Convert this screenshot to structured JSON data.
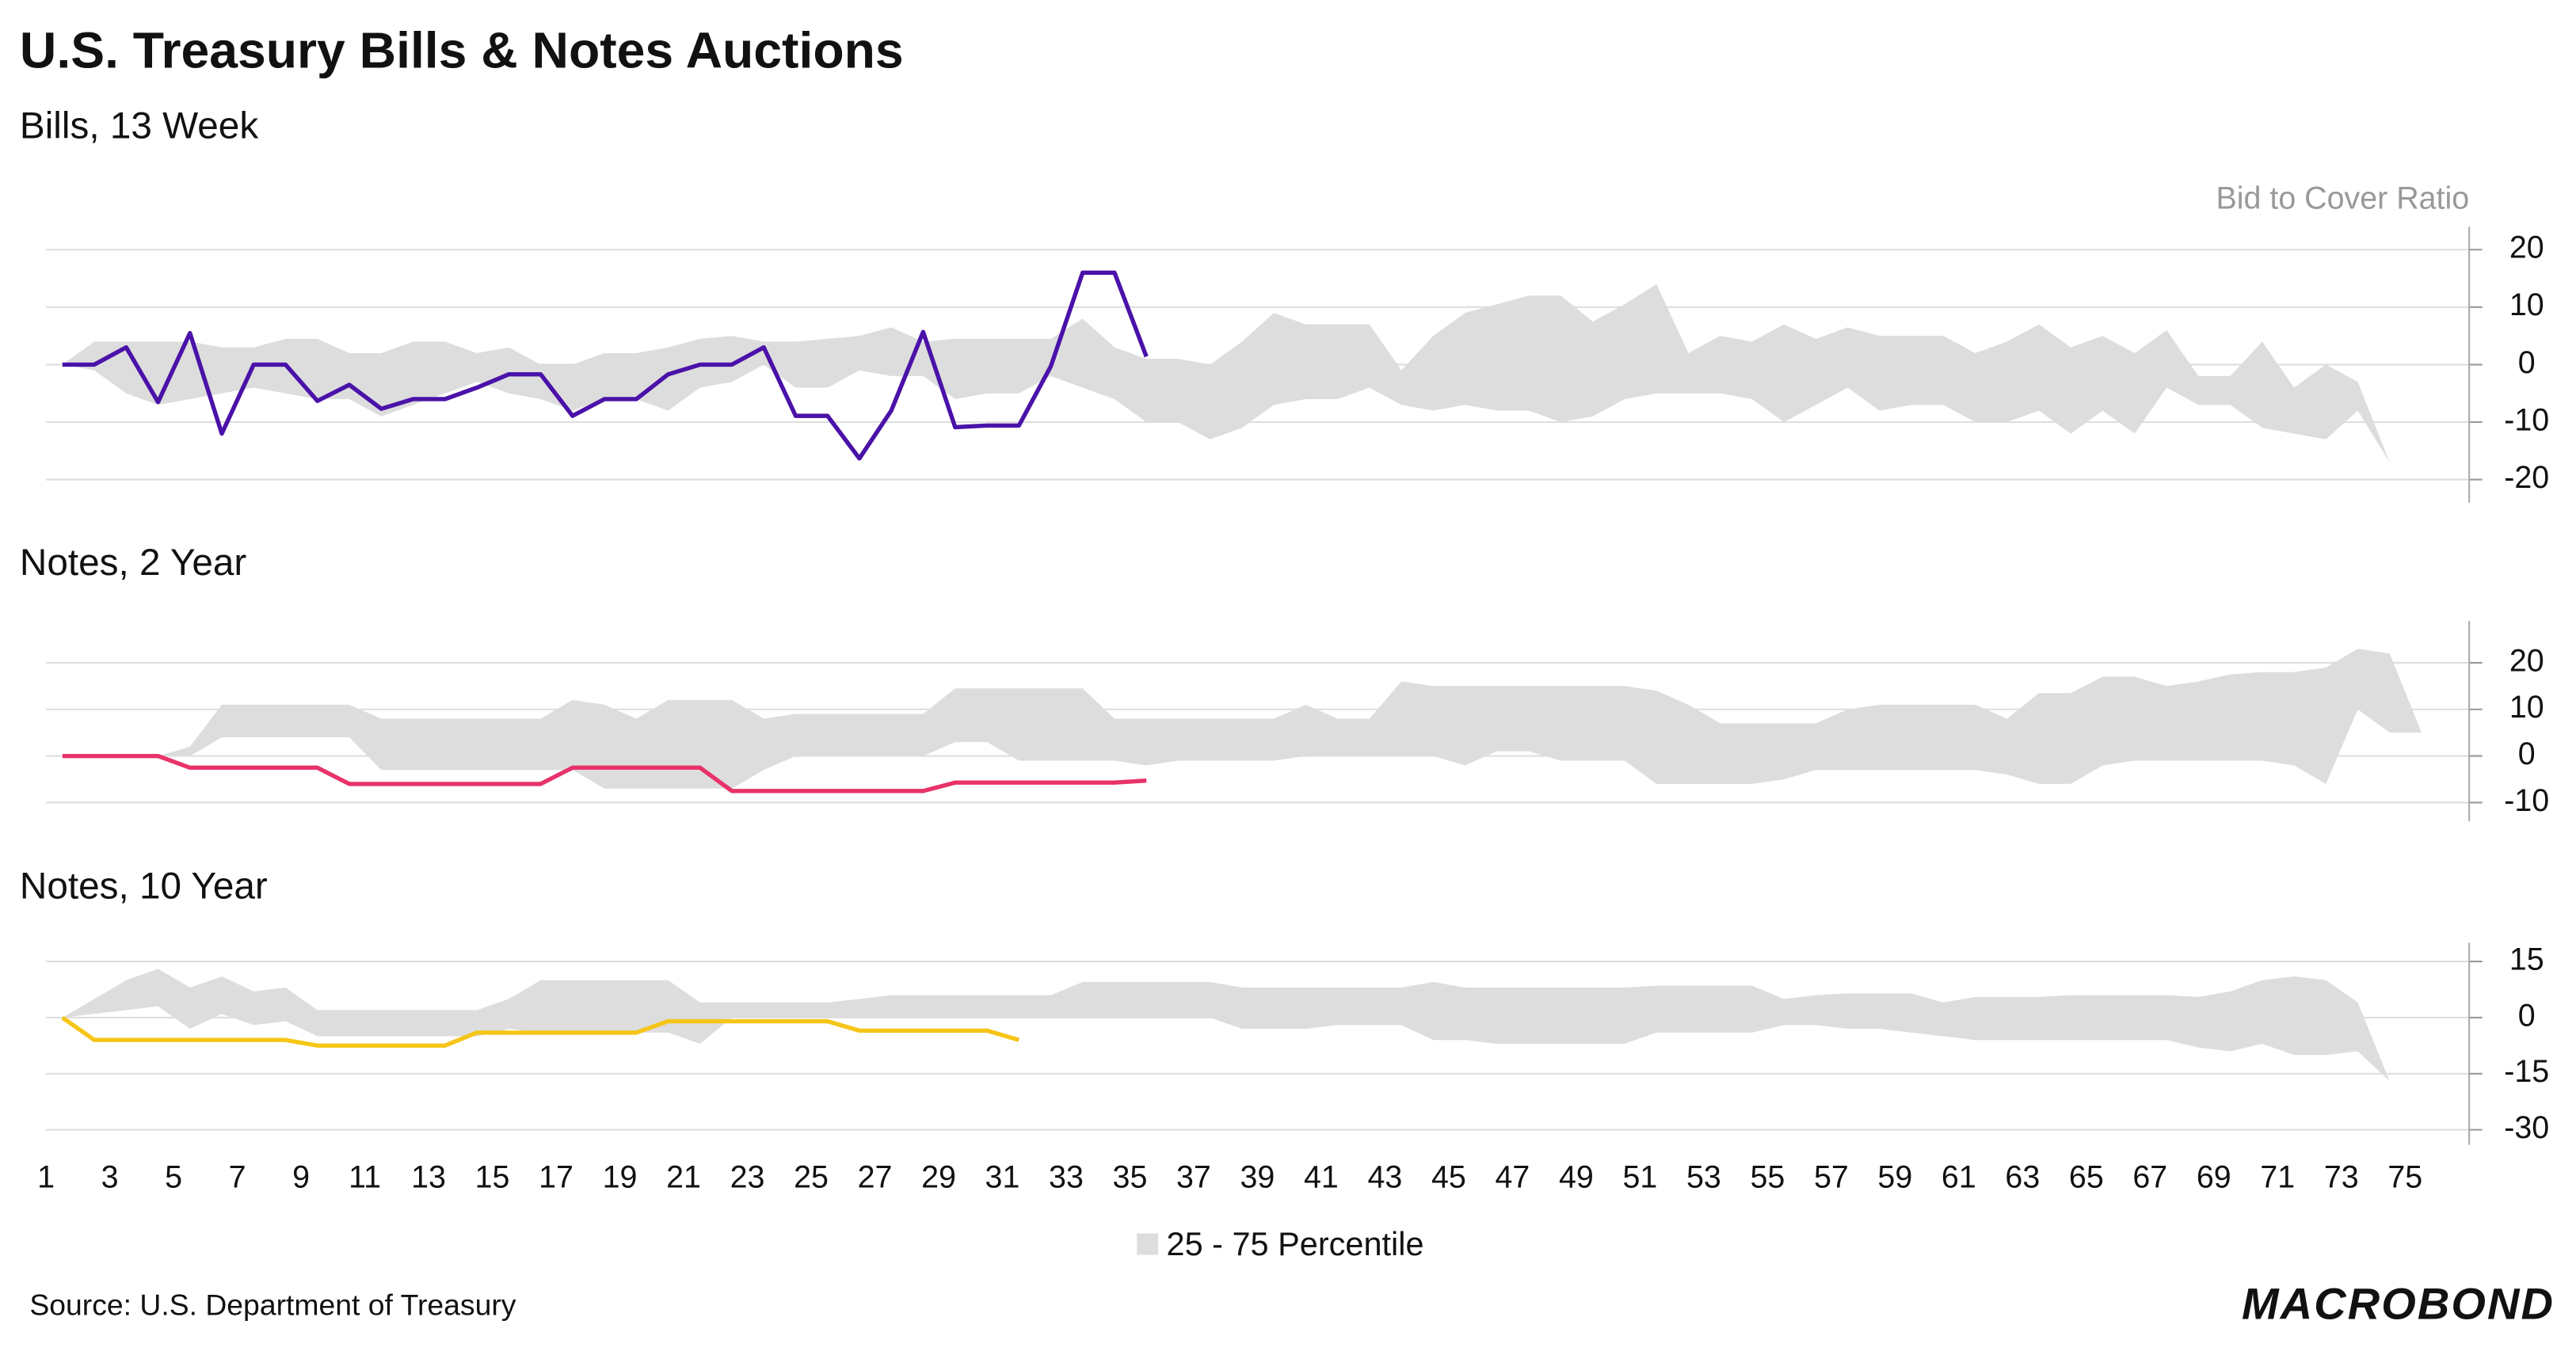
{
  "title": "U.S. Treasury Bills & Notes Auctions",
  "source": "Source: U.S. Department of Treasury",
  "logo": "MACROBOND",
  "legend": {
    "name": "25 - 75 Percentile",
    "color": "#dddddd"
  },
  "chart_data": [
    {
      "type": "line",
      "subtitle": "Bills, 13 Week",
      "y_label": "Bid to Cover Ratio",
      "x": [
        1,
        2,
        3,
        4,
        5,
        6,
        7,
        8,
        9,
        10,
        11,
        12,
        13,
        14,
        15,
        16,
        17,
        18,
        19,
        20,
        21,
        22,
        23,
        24,
        25,
        26,
        27,
        28,
        29,
        30,
        31,
        32,
        33,
        34,
        35,
        36,
        37,
        38,
        39,
        40,
        41,
        42,
        43,
        44,
        45,
        46,
        47,
        48,
        49,
        50,
        51,
        52,
        53,
        54,
        55,
        56,
        57,
        58,
        59,
        60,
        61,
        62,
        63,
        64,
        65,
        66,
        67,
        68,
        69,
        70,
        71,
        72,
        73,
        74,
        75
      ],
      "xlim": [
        1,
        75
      ],
      "ylim": [
        -24,
        24
      ],
      "yticks": [
        -20,
        -10,
        0,
        10,
        20
      ],
      "grid": true,
      "band": {
        "color": "#dddddd",
        "upper": [
          0,
          4,
          4,
          4,
          4,
          3,
          3,
          4.5,
          4.5,
          2,
          2,
          4,
          4,
          2,
          3,
          0,
          0,
          2,
          2,
          3,
          4.5,
          5,
          4,
          4,
          4.5,
          5,
          6.5,
          4,
          4.5,
          4.5,
          4.5,
          4.5,
          8,
          3,
          1,
          1,
          0,
          4,
          9,
          7,
          7,
          7,
          -1,
          5,
          9,
          10.5,
          12,
          12,
          7.5,
          10.5,
          14,
          2,
          5,
          4,
          7,
          4.5,
          6.5,
          5,
          5,
          5,
          2,
          4,
          7,
          3,
          5,
          2,
          6,
          -2,
          -2,
          4,
          -4,
          0,
          -3,
          -17,
          null
        ],
        "lower": [
          0,
          -1,
          -5,
          -7,
          -6,
          -5,
          -4,
          -5,
          -6,
          -6,
          -9,
          -7,
          -5,
          -3,
          -5,
          -6,
          -8,
          -6,
          -6,
          -8,
          -4,
          -3,
          0,
          -4,
          -4,
          -1,
          -2,
          -2,
          -6,
          -5,
          -5,
          -2,
          -4,
          -6,
          -10,
          -10,
          -13,
          -11,
          -7,
          -6,
          -6,
          -4,
          -7,
          -8,
          -7,
          -8,
          -8,
          -10,
          -9,
          -6,
          -5,
          -5,
          -5,
          -6,
          -10,
          -7,
          -4,
          -8,
          -7,
          -7,
          -10,
          -10,
          -8,
          -12,
          -8,
          -12,
          -4,
          -7,
          -7,
          -11,
          -12,
          -13,
          -8,
          -17,
          null
        ]
      },
      "series": [
        {
          "color": "#4a12a8",
          "values": [
            0,
            0,
            3,
            -6.5,
            5.5,
            -12,
            0,
            0,
            -6.3,
            -3.5,
            -7.7,
            -6,
            -6,
            -4,
            -1.7,
            -1.7,
            -8.9,
            -6,
            -6,
            -1.7,
            0,
            0,
            3,
            -8.9,
            -8.9,
            -16.3,
            -8,
            5.7,
            -10.9,
            -10.6,
            -10.6,
            -0.3,
            16,
            16,
            1.4,
            null,
            null,
            null,
            null,
            null,
            null,
            null,
            null,
            null,
            null,
            null,
            null,
            null,
            null,
            null,
            null,
            null,
            null,
            null,
            null,
            null,
            null,
            null,
            null,
            null,
            null,
            null,
            null,
            null,
            null,
            null,
            null,
            null,
            null,
            null,
            null,
            null,
            null,
            null,
            null
          ]
        }
      ]
    },
    {
      "type": "line",
      "subtitle": "Notes, 2 Year",
      "x": [
        1,
        2,
        3,
        4,
        5,
        6,
        7,
        8,
        9,
        10,
        11,
        12,
        13,
        14,
        15,
        16,
        17,
        18,
        19,
        20,
        21,
        22,
        23,
        24,
        25,
        26,
        27,
        28,
        29,
        30,
        31,
        32,
        33,
        34,
        35,
        36,
        37,
        38,
        39,
        40,
        41,
        42,
        43,
        44,
        45,
        46,
        47,
        48,
        49,
        50,
        51,
        52,
        53,
        54,
        55,
        56,
        57,
        58,
        59,
        60,
        61,
        62,
        63,
        64,
        65,
        66,
        67,
        68,
        69,
        70,
        71,
        72,
        73,
        74,
        75
      ],
      "xlim": [
        1,
        75
      ],
      "ylim": [
        -14,
        29
      ],
      "yticks": [
        -10,
        0,
        10,
        20
      ],
      "grid": true,
      "band": {
        "color": "#dddddd",
        "upper": [
          0,
          0,
          0,
          0,
          2,
          11,
          11,
          11,
          11,
          11,
          8,
          8,
          8,
          8,
          8,
          8,
          12,
          11,
          8,
          12,
          12,
          12,
          8,
          9,
          9,
          9,
          9,
          9,
          14.5,
          14.5,
          14.5,
          14.5,
          14.5,
          8,
          8,
          8,
          8,
          8,
          8,
          11,
          8,
          8,
          16,
          15,
          15,
          15,
          15,
          15,
          15,
          15,
          14,
          11,
          7,
          7,
          7,
          7,
          10,
          11,
          11,
          11,
          11,
          8,
          13.5,
          13.5,
          17,
          17,
          15,
          16,
          17.5,
          18,
          18,
          19,
          23,
          22,
          5
        ],
        "lower": [
          0,
          0,
          0,
          0,
          0,
          4,
          4,
          4,
          4,
          4,
          -3,
          -3,
          -3,
          -3,
          -3,
          -3,
          -3,
          -7,
          -7,
          -7,
          -7,
          -7,
          -3,
          0,
          0,
          0,
          0,
          0,
          3,
          3,
          -1,
          -1,
          -1,
          -1,
          -2,
          -1,
          -1,
          -1,
          -1,
          0,
          0,
          0,
          0,
          0,
          -2,
          1,
          1,
          -1,
          -1,
          -1,
          -6,
          -6,
          -6,
          -6,
          -5,
          -3,
          -3,
          -3,
          -3,
          -3,
          -3,
          -4,
          -6,
          -6,
          -2,
          -1,
          -1,
          -1,
          -1,
          -1,
          -2,
          -6,
          10,
          5,
          5
        ]
      },
      "series": [
        {
          "color": "#e8336a",
          "values": [
            0,
            0,
            0,
            0,
            -2.5,
            -2.5,
            -2.5,
            -2.5,
            -2.5,
            -6,
            -6,
            -6,
            -6,
            -6,
            -6,
            -6,
            -2.5,
            -2.5,
            -2.5,
            -2.5,
            -2.5,
            -7.5,
            -7.5,
            -7.5,
            -7.5,
            -7.5,
            -7.5,
            -7.5,
            -5.7,
            -5.7,
            -5.7,
            -5.7,
            -5.7,
            -5.7,
            -5.3,
            null,
            null,
            null,
            null,
            null,
            null,
            null,
            null,
            null,
            null,
            null,
            null,
            null,
            null,
            null,
            null,
            null,
            null,
            null,
            null,
            null,
            null,
            null,
            null,
            null,
            null,
            null,
            null,
            null,
            null,
            null,
            null,
            null,
            null,
            null,
            null,
            null,
            null,
            null,
            null
          ]
        }
      ]
    },
    {
      "type": "line",
      "subtitle": "Notes, 10 Year",
      "x": [
        1,
        2,
        3,
        4,
        5,
        6,
        7,
        8,
        9,
        10,
        11,
        12,
        13,
        14,
        15,
        16,
        17,
        18,
        19,
        20,
        21,
        22,
        23,
        24,
        25,
        26,
        27,
        28,
        29,
        30,
        31,
        32,
        33,
        34,
        35,
        36,
        37,
        38,
        39,
        40,
        41,
        42,
        43,
        44,
        45,
        46,
        47,
        48,
        49,
        50,
        51,
        52,
        53,
        54,
        55,
        56,
        57,
        58,
        59,
        60,
        61,
        62,
        63,
        64,
        65,
        66,
        67,
        68,
        69,
        70,
        71,
        72,
        73,
        74,
        75
      ],
      "xlim": [
        1,
        75
      ],
      "xticks": [
        1,
        3,
        5,
        7,
        9,
        11,
        13,
        15,
        17,
        19,
        21,
        23,
        25,
        27,
        29,
        31,
        33,
        35,
        37,
        39,
        41,
        43,
        45,
        47,
        49,
        51,
        53,
        55,
        57,
        59,
        61,
        63,
        65,
        67,
        69,
        71,
        73,
        75
      ],
      "ylim": [
        -34,
        20
      ],
      "yticks": [
        -30,
        -15,
        0,
        15
      ],
      "grid": true,
      "band": {
        "color": "#dddddd",
        "upper": [
          0,
          5,
          10,
          13,
          8,
          11,
          7,
          8,
          2,
          2,
          2,
          2,
          2,
          2,
          5,
          10,
          10,
          10,
          10,
          10,
          4,
          4,
          4,
          4,
          4,
          5,
          6,
          6,
          6,
          6,
          6,
          6,
          9.5,
          9.5,
          9.5,
          9.5,
          9.5,
          8,
          8,
          8,
          8,
          8,
          8,
          9.5,
          8,
          8,
          8,
          8,
          8,
          8,
          8.5,
          8.5,
          8.5,
          8.5,
          5,
          6,
          6.5,
          6.5,
          6.5,
          4,
          5.5,
          5.5,
          5.5,
          6,
          6,
          6,
          6,
          5.5,
          7,
          10,
          11,
          10,
          4,
          -17,
          null
        ],
        "lower": [
          0,
          1,
          2,
          3,
          -3,
          1,
          -2,
          -1,
          -5,
          -5,
          -5,
          -5,
          -5,
          -5,
          -3,
          -4,
          -4,
          -4,
          -4,
          -4,
          -7,
          0,
          0,
          0,
          0,
          0,
          0,
          0,
          0,
          0,
          0,
          0,
          0,
          0,
          0,
          0,
          0,
          -3,
          -3,
          -3,
          -2,
          -2,
          -2,
          -6,
          -6,
          -7,
          -7,
          -7,
          -7,
          -7,
          -4,
          -4,
          -4,
          -4,
          -2,
          -2,
          -3,
          -3,
          -4,
          -5,
          -6,
          -6,
          -6,
          -6,
          -6,
          -6,
          -6,
          -8,
          -9,
          -7,
          -10,
          -10,
          -9,
          -17,
          null
        ]
      },
      "series": [
        {
          "color": "#f5c518",
          "values": [
            0,
            -6,
            -6,
            -6,
            -6,
            -6,
            -6,
            -6,
            -7.5,
            -7.5,
            -7.5,
            -7.5,
            -7.5,
            -4,
            -4,
            -4,
            -4,
            -4,
            -4,
            -1,
            -1,
            -1,
            -1,
            -1,
            -1,
            -3.5,
            -3.5,
            -3.5,
            -3.5,
            -3.5,
            -6,
            null,
            null,
            null,
            null,
            null,
            null,
            null,
            null,
            null,
            null,
            null,
            null,
            null,
            null,
            null,
            null,
            null,
            null,
            null,
            null,
            null,
            null,
            null,
            null,
            null,
            null,
            null,
            null,
            null,
            null,
            null,
            null,
            null,
            null,
            null,
            null,
            null,
            null,
            null,
            null,
            null,
            null,
            null,
            null
          ]
        }
      ]
    }
  ]
}
